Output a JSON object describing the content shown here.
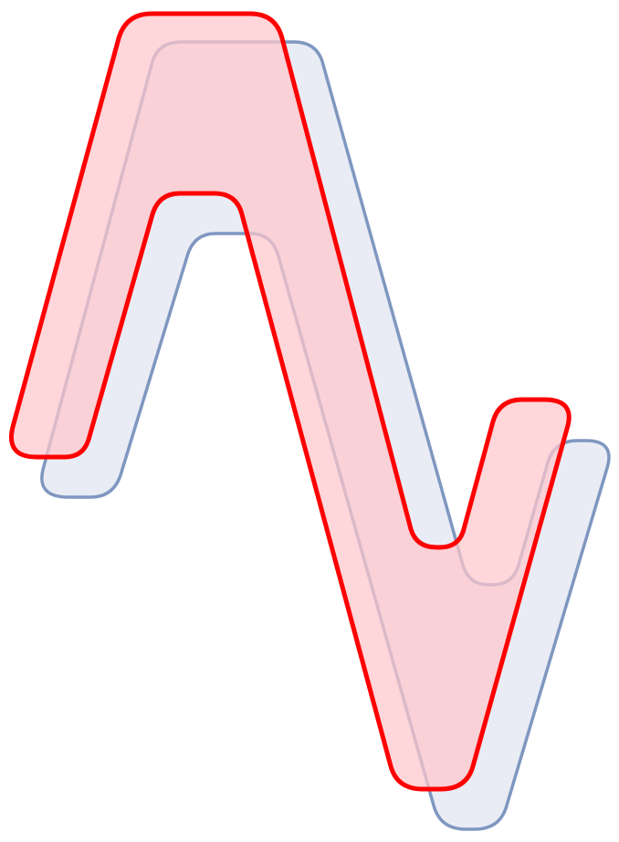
{
  "shapes": [
    {
      "id": "back",
      "kind": "rounded-zigzag-outline",
      "fill": "#e9ecf5",
      "stroke": "#7f97c0"
    },
    {
      "id": "front",
      "kind": "rounded-zigzag-outline",
      "fill": "#ffc6cc",
      "fill_opacity": 0.72,
      "stroke": "#ff0000"
    }
  ]
}
